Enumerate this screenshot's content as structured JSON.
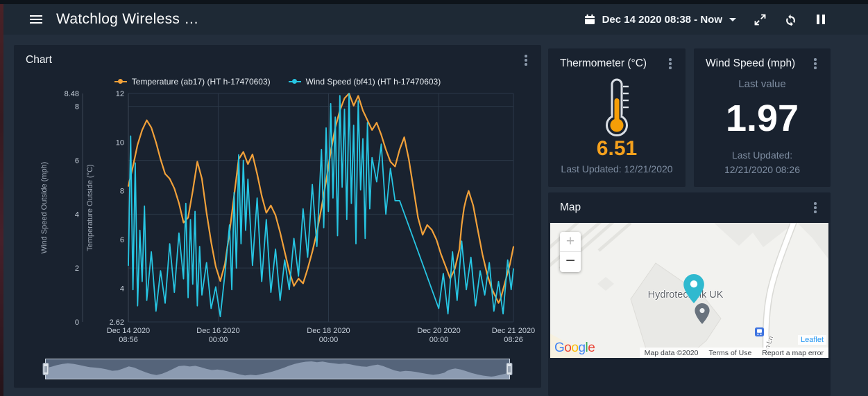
{
  "colors": {
    "accent_orange": "#f2a13a",
    "accent_cyan": "#27c5e2",
    "value_orange": "#f5a11d"
  },
  "header": {
    "title": "Watchlog Wireless …",
    "date_range": "Dec 14 2020 08:38 - Now"
  },
  "chart_card": {
    "title": "Chart"
  },
  "chart_data": {
    "type": "line",
    "title": "",
    "x_unit": "hours since Dec 14 2020 08:56",
    "x_range_hours": [
      0,
      167.5
    ],
    "grid": true,
    "legend_position": "top",
    "x_ticks": [
      {
        "t": 0,
        "line1": "Dec 14 2020",
        "line2": "08:56"
      },
      {
        "t": 39.07,
        "line1": "Dec 16 2020",
        "line2": "00:00"
      },
      {
        "t": 87.07,
        "line1": "Dec 18 2020",
        "line2": "00:00"
      },
      {
        "t": 135.07,
        "line1": "Dec 20 2020",
        "line2": "00:00"
      },
      {
        "t": 167.5,
        "line1": "Dec 21 2020",
        "line2": "08:26"
      }
    ],
    "axes": {
      "wind": {
        "label": "Wind Speed Outside (mph)",
        "min": 0,
        "max": 8.48,
        "ticks": [
          {
            "v": 0,
            "label": "0"
          },
          {
            "v": 2,
            "label": "2"
          },
          {
            "v": 4,
            "label": "4"
          },
          {
            "v": 6,
            "label": "6"
          },
          {
            "v": 8,
            "label": "8"
          },
          {
            "v": 8.48,
            "label": "8.48"
          }
        ]
      },
      "temp": {
        "label": "Temperature Outside (°C)",
        "min": 2.62,
        "max": 12,
        "ticks": [
          {
            "v": 2.62,
            "label": "2.62"
          },
          {
            "v": 4,
            "label": "4"
          },
          {
            "v": 6,
            "label": "6"
          },
          {
            "v": 8,
            "label": "8"
          },
          {
            "v": 10,
            "label": "10"
          },
          {
            "v": 12,
            "label": "12"
          }
        ]
      }
    },
    "series": [
      {
        "name": "Temperature (ab17)  (HT h-17470603)",
        "axis": "temp",
        "color": "#f2a13a",
        "x": [
          0,
          2,
          4,
          6,
          8,
          10,
          12,
          14,
          16,
          18,
          20,
          22,
          24,
          26,
          28,
          30,
          32,
          34,
          36,
          38,
          40,
          42,
          44,
          46,
          48,
          50,
          52,
          54,
          56,
          58,
          60,
          62,
          64,
          66,
          68,
          70,
          72,
          74,
          76,
          78,
          80,
          82,
          84,
          86,
          88,
          90,
          92,
          94,
          96,
          98,
          100,
          102,
          104,
          106,
          108,
          110,
          112,
          114,
          116,
          118,
          120,
          122,
          124,
          126,
          128,
          130,
          132,
          134,
          136,
          138,
          140,
          142,
          144,
          145,
          146,
          147,
          148,
          150,
          152,
          154,
          156,
          158,
          160,
          161,
          162,
          164,
          166,
          167.5
        ],
        "y": [
          8.2,
          9.0,
          9.9,
          10.5,
          10.9,
          10.6,
          10.0,
          9.3,
          8.7,
          8.5,
          8.1,
          7.5,
          6.7,
          6.9,
          8.0,
          9.2,
          8.5,
          7.1,
          5.9,
          4.9,
          4.3,
          5.0,
          6.3,
          7.8,
          9.3,
          9.6,
          9.1,
          9.5,
          8.7,
          7.8,
          7.1,
          7.4,
          7.0,
          6.3,
          5.5,
          4.7,
          4.1,
          4.4,
          4.2,
          4.8,
          5.5,
          6.3,
          7.3,
          8.4,
          9.6,
          10.6,
          11.3,
          11.8,
          12.0,
          11.5,
          11.9,
          11.3,
          10.9,
          10.5,
          10.8,
          10.3,
          9.7,
          9.2,
          9.0,
          9.7,
          10.2,
          9.3,
          8.1,
          6.9,
          6.2,
          6.6,
          6.4,
          6.0,
          5.4,
          4.9,
          4.4,
          4.8,
          5.6,
          6.6,
          7.3,
          7.7,
          8.0,
          7.4,
          6.4,
          5.4,
          4.6,
          4.0,
          3.6,
          3.4,
          3.6,
          4.3,
          5.0,
          5.7
        ]
      },
      {
        "name": "Wind Speed (bf41)  (HT h-17470603)",
        "axis": "wind",
        "color": "#27c5e2",
        "x": [
          0,
          1,
          2,
          3,
          4,
          5,
          6,
          7,
          8,
          10,
          12,
          14,
          16,
          18,
          20,
          22,
          24,
          25,
          26,
          27,
          28,
          29,
          30,
          31,
          32,
          34,
          36,
          38,
          40,
          42,
          44,
          45,
          46,
          47,
          48,
          49,
          50,
          51,
          52,
          54,
          56,
          58,
          60,
          62,
          64,
          66,
          68,
          70,
          72,
          74,
          76,
          78,
          80,
          82,
          84,
          85,
          86,
          87,
          88,
          89,
          90,
          91,
          92,
          93,
          94,
          95,
          96,
          97,
          98,
          99,
          100,
          101,
          102,
          103,
          104,
          105,
          106,
          108,
          110,
          112,
          114,
          116,
          118,
          135,
          137,
          139,
          141,
          143,
          145,
          147,
          149,
          151,
          153,
          155,
          157,
          159,
          161,
          163,
          165,
          166.5,
          167.5
        ],
        "y": [
          2.1,
          6.9,
          1.2,
          5.9,
          0.6,
          3.4,
          1.5,
          4.3,
          0.8,
          2.6,
          0.4,
          1.9,
          0.7,
          2.9,
          1.1,
          3.3,
          1.6,
          4.4,
          0.9,
          3.8,
          1.4,
          4.1,
          0.6,
          2.8,
          1.0,
          2.2,
          0.5,
          1.3,
          0.2,
          1.8,
          3.6,
          1.2,
          4.8,
          2.0,
          6.2,
          2.9,
          6.0,
          3.4,
          5.3,
          2.1,
          4.6,
          1.5,
          3.8,
          1.1,
          2.7,
          0.8,
          2.3,
          1.2,
          3.1,
          1.7,
          4.2,
          2.4,
          5.1,
          2.8,
          6.4,
          3.5,
          7.2,
          4.1,
          8.1,
          4.6,
          7.6,
          3.2,
          8.4,
          5.0,
          7.9,
          3.8,
          8.48,
          4.4,
          7.3,
          2.9,
          8.2,
          4.9,
          6.8,
          3.1,
          7.4,
          4.2,
          6.1,
          5.2,
          6.6,
          4.0,
          5.7,
          4.5,
          4.5,
          0.5,
          1.8,
          0.3,
          2.6,
          0.8,
          3.0,
          1.2,
          2.4,
          0.6,
          1.9,
          1.0,
          2.2,
          0.4,
          1.5,
          0.3,
          2.3,
          1.2,
          1.97
        ]
      }
    ]
  },
  "thermometer_card": {
    "title": "Thermometer (°C)",
    "value": "6.51",
    "last_updated": "Last Updated: 12/21/2020"
  },
  "wind_card": {
    "title": "Wind Speed (mph)",
    "subtitle": "Last value",
    "value": "1.97",
    "last_updated": "Last Updated: 12/21/2020 08:26"
  },
  "map_card": {
    "title": "Map",
    "place_label": "Hydrotechnik UK",
    "road_label": "on Ln",
    "zoom_in": "+",
    "zoom_out": "−",
    "leaflet": "Leaflet",
    "attribution": {
      "map_data": "Map data ©2020",
      "terms": "Terms of Use",
      "report": "Report a map error"
    },
    "google_letters": [
      {
        "ch": "G",
        "c": "#4285F4"
      },
      {
        "ch": "o",
        "c": "#EA4335"
      },
      {
        "ch": "o",
        "c": "#FBBC05"
      },
      {
        "ch": "g",
        "c": "#4285F4"
      },
      {
        "ch": "l",
        "c": "#34A853"
      },
      {
        "ch": "e",
        "c": "#EA4335"
      }
    ]
  }
}
